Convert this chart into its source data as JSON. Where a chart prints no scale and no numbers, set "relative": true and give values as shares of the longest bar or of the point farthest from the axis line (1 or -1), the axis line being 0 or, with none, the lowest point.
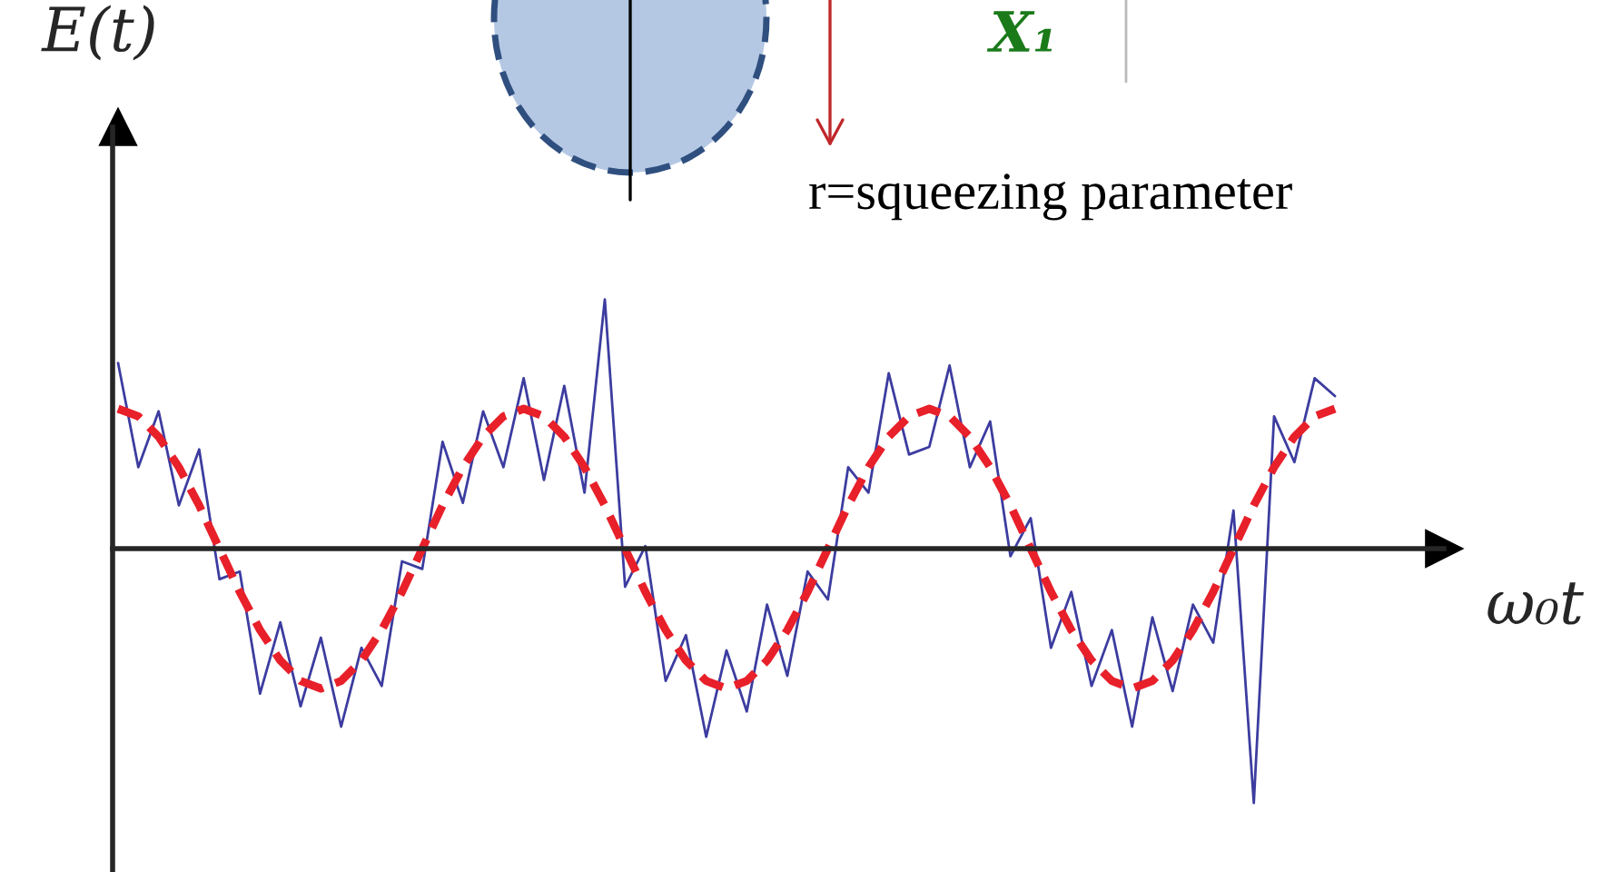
{
  "chart_data": {
    "type": "line",
    "relative": true,
    "xlabel": "ω₀t",
    "ylabel": "E(t)",
    "legend": false,
    "categories": [
      null,
      null,
      null,
      null,
      null,
      null,
      null,
      null,
      null,
      null,
      null,
      null,
      null,
      null,
      null,
      null,
      null,
      null,
      null,
      null,
      null,
      null,
      null,
      null,
      null,
      null,
      null,
      null,
      null,
      null,
      null,
      null,
      null,
      null,
      null,
      null,
      null,
      null,
      null,
      null,
      null,
      null,
      null,
      null,
      null,
      null,
      null,
      null,
      null,
      null,
      null,
      null,
      null,
      null,
      null,
      null,
      null,
      null,
      null,
      null,
      null
    ],
    "series": [
      {
        "color": "#3c3ca0",
        "line_style": "solid",
        "values": [
          0.73,
          0.32,
          0.54,
          0.17,
          0.39,
          -0.12,
          -0.09,
          -0.57,
          -0.29,
          -0.62,
          -0.35,
          -0.7,
          -0.39,
          -0.54,
          -0.05,
          -0.08,
          0.42,
          0.18,
          0.54,
          0.32,
          0.67,
          0.27,
          0.64,
          0.22,
          0.98,
          -0.15,
          0.01,
          -0.52,
          -0.34,
          -0.74,
          -0.4,
          -0.64,
          -0.22,
          -0.5,
          -0.09,
          -0.2,
          0.32,
          0.22,
          0.69,
          0.37,
          0.4,
          0.72,
          0.32,
          0.5,
          -0.03,
          0.12,
          -0.39,
          -0.17,
          -0.54,
          -0.32,
          -0.7,
          -0.27,
          -0.56,
          -0.22,
          -0.37,
          0.15,
          -1.0,
          0.52,
          0.34,
          0.67,
          0.6
        ]
      },
      {
        "color": "#e8202a",
        "line_style": "dashed",
        "values": [
          0.55,
          0.52,
          0.44,
          0.32,
          0.17,
          0,
          -0.17,
          -0.32,
          -0.44,
          -0.52,
          -0.55,
          -0.52,
          -0.44,
          -0.32,
          -0.17,
          0,
          0.17,
          0.32,
          0.44,
          0.52,
          0.55,
          0.52,
          0.44,
          0.32,
          0.17,
          0,
          -0.17,
          -0.32,
          -0.44,
          -0.52,
          -0.55,
          -0.52,
          -0.44,
          -0.32,
          -0.17,
          0,
          0.17,
          0.32,
          0.44,
          0.52,
          0.55,
          0.52,
          0.44,
          0.32,
          0.17,
          0,
          -0.17,
          -0.32,
          -0.44,
          -0.52,
          -0.55,
          -0.52,
          -0.44,
          -0.32,
          -0.17,
          0,
          0.17,
          0.32,
          0.44,
          0.52,
          0.55
        ]
      }
    ],
    "annotations": [
      "X₁",
      "r=squeezing parameter"
    ]
  }
}
